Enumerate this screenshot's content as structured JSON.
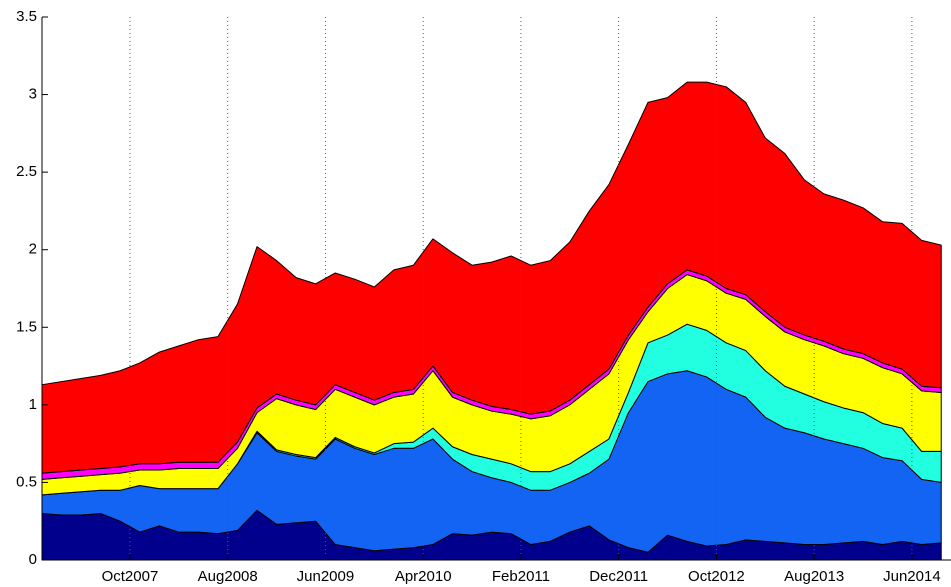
{
  "chart_data": {
    "type": "stacked-area",
    "x": [
      "2007-01",
      "2007-03",
      "2007-05",
      "2007-07",
      "2007-09",
      "2007-11",
      "2008-01",
      "2008-03",
      "2008-05",
      "2008-07",
      "2008-09",
      "2008-11",
      "2009-01",
      "2009-03",
      "2009-05",
      "2009-07",
      "2009-09",
      "2009-11",
      "2010-01",
      "2010-03",
      "2010-05",
      "2010-07",
      "2010-09",
      "2010-11",
      "2011-01",
      "2011-03",
      "2011-05",
      "2011-07",
      "2011-09",
      "2011-11",
      "2012-01",
      "2012-03",
      "2012-05",
      "2012-07",
      "2012-09",
      "2012-11",
      "2013-01",
      "2013-03",
      "2013-05",
      "2013-07",
      "2013-09",
      "2013-11",
      "2014-01",
      "2014-03",
      "2014-05",
      "2014-07",
      "2014-09"
    ],
    "series": [
      {
        "color": "#00008c",
        "values": [
          0.3,
          0.29,
          0.29,
          0.3,
          0.25,
          0.18,
          0.22,
          0.18,
          0.18,
          0.17,
          0.19,
          0.32,
          0.23,
          0.24,
          0.25,
          0.1,
          0.08,
          0.06,
          0.07,
          0.08,
          0.1,
          0.17,
          0.16,
          0.18,
          0.17,
          0.1,
          0.12,
          0.18,
          0.22,
          0.13,
          0.08,
          0.05,
          0.16,
          0.12,
          0.09,
          0.1,
          0.13,
          0.12,
          0.11,
          0.1,
          0.1,
          0.11,
          0.12,
          0.1,
          0.12,
          0.1,
          0.11
        ]
      },
      {
        "color": "#1464f4",
        "values": [
          0.12,
          0.14,
          0.15,
          0.15,
          0.2,
          0.3,
          0.24,
          0.28,
          0.28,
          0.29,
          0.43,
          0.5,
          0.47,
          0.43,
          0.4,
          0.68,
          0.64,
          0.62,
          0.65,
          0.64,
          0.68,
          0.48,
          0.41,
          0.35,
          0.33,
          0.35,
          0.33,
          0.32,
          0.34,
          0.52,
          0.87,
          1.1,
          1.04,
          1.1,
          1.09,
          1.0,
          0.92,
          0.8,
          0.74,
          0.72,
          0.68,
          0.64,
          0.6,
          0.56,
          0.52,
          0.42,
          0.39
        ]
      },
      {
        "color": "#22ffe0",
        "values": [
          0,
          0,
          0,
          0,
          0,
          0,
          0,
          0,
          0,
          0,
          0,
          0.01,
          0.01,
          0.01,
          0.01,
          0.01,
          0.01,
          0.01,
          0.03,
          0.04,
          0.07,
          0.08,
          0.11,
          0.12,
          0.12,
          0.12,
          0.12,
          0.12,
          0.14,
          0.13,
          0.13,
          0.25,
          0.25,
          0.3,
          0.3,
          0.3,
          0.3,
          0.3,
          0.27,
          0.25,
          0.24,
          0.23,
          0.23,
          0.22,
          0.21,
          0.18,
          0.2
        ]
      },
      {
        "color": "#ffff00",
        "values": [
          0.1,
          0.1,
          0.1,
          0.1,
          0.11,
          0.1,
          0.12,
          0.13,
          0.13,
          0.13,
          0.1,
          0.12,
          0.33,
          0.32,
          0.31,
          0.31,
          0.32,
          0.31,
          0.3,
          0.31,
          0.37,
          0.32,
          0.32,
          0.31,
          0.32,
          0.34,
          0.36,
          0.38,
          0.4,
          0.42,
          0.34,
          0.2,
          0.3,
          0.32,
          0.32,
          0.32,
          0.33,
          0.35,
          0.35,
          0.35,
          0.36,
          0.35,
          0.35,
          0.36,
          0.35,
          0.39,
          0.38
        ]
      },
      {
        "color": "#ff00ff",
        "values": [
          0.04,
          0.04,
          0.04,
          0.04,
          0.04,
          0.04,
          0.04,
          0.04,
          0.04,
          0.04,
          0.04,
          0.03,
          0.03,
          0.03,
          0.03,
          0.03,
          0.03,
          0.03,
          0.03,
          0.03,
          0.03,
          0.03,
          0.03,
          0.03,
          0.03,
          0.03,
          0.03,
          0.03,
          0.03,
          0.03,
          0.03,
          0.03,
          0.03,
          0.03,
          0.03,
          0.03,
          0.03,
          0.03,
          0.03,
          0.03,
          0.03,
          0.03,
          0.03,
          0.03,
          0.03,
          0.03,
          0.03
        ]
      },
      {
        "color": "#ff0000",
        "values": [
          0.57,
          0.58,
          0.59,
          0.6,
          0.62,
          0.65,
          0.72,
          0.75,
          0.79,
          0.81,
          0.89,
          1.04,
          0.86,
          0.79,
          0.78,
          0.72,
          0.73,
          0.73,
          0.79,
          0.8,
          0.82,
          0.9,
          0.87,
          0.93,
          0.99,
          0.96,
          0.97,
          1.02,
          1.12,
          1.19,
          1.23,
          1.32,
          1.2,
          1.21,
          1.25,
          1.3,
          1.24,
          1.12,
          1.12,
          1.0,
          0.95,
          0.96,
          0.94,
          0.91,
          0.94,
          0.94,
          0.92
        ]
      }
    ],
    "xlim": [
      "2007-01",
      "2014-10"
    ],
    "xticks": [
      {
        "value": "2007-10",
        "label": "Oct2007"
      },
      {
        "value": "2008-08",
        "label": "Aug2008"
      },
      {
        "value": "2009-06",
        "label": "Jun2009"
      },
      {
        "value": "2010-04",
        "label": "Apr2010"
      },
      {
        "value": "2011-02",
        "label": "Feb2011"
      },
      {
        "value": "2011-12",
        "label": "Dec2011"
      },
      {
        "value": "2012-10",
        "label": "Oct2012"
      },
      {
        "value": "2013-08",
        "label": "Aug2013"
      },
      {
        "value": "2014-06",
        "label": "Jun2014"
      }
    ],
    "ylim": [
      0,
      3.5
    ],
    "yticks": [
      0,
      0.5,
      1,
      1.5,
      2,
      2.5,
      3,
      3.5
    ],
    "grid": "x"
  }
}
